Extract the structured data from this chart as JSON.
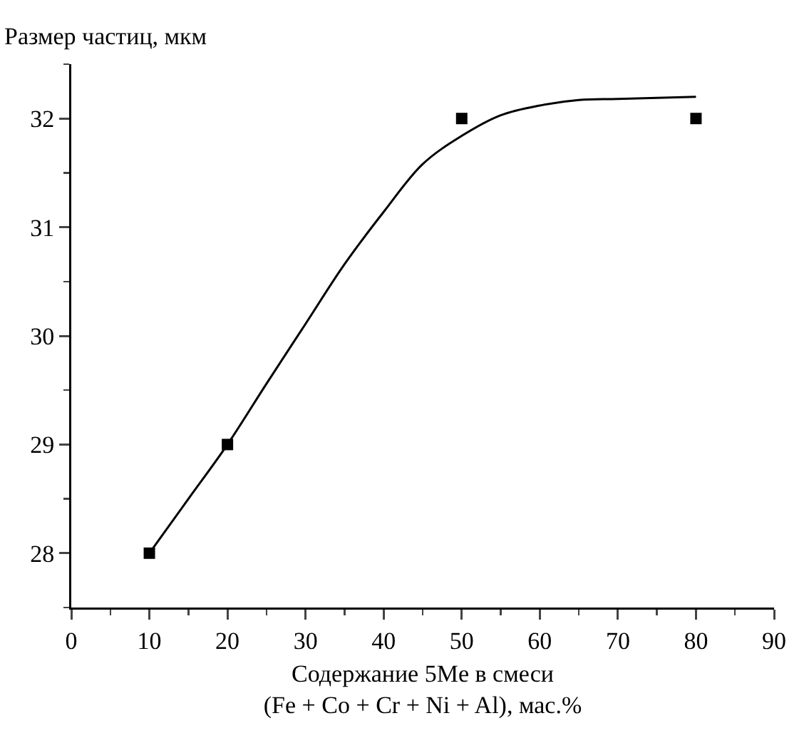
{
  "chart_data": {
    "type": "scatter",
    "ylabel": "Размер частиц, мкм",
    "xlabel": "Содержание 5Me в смеси\n(Fe + Co + Cr + Ni + Al), мас.%",
    "xlim": [
      0,
      90
    ],
    "xticks": [
      0,
      {
        "value": 5,
        "label": null
      },
      10,
      {
        "value": 15,
        "label": null
      },
      20,
      {
        "value": 25,
        "label": null
      },
      30,
      {
        "value": 35,
        "label": null
      },
      40,
      {
        "value": 45,
        "label": null
      },
      50,
      {
        "value": 55,
        "label": null
      },
      60,
      {
        "value": 65,
        "label": null
      },
      70,
      {
        "value": 75,
        "label": null
      },
      80,
      {
        "value": 85,
        "label": null
      },
      90
    ],
    "ylim": [
      27.5,
      32.5
    ],
    "yticks": [
      {
        "value": 27.5,
        "label": null
      },
      28,
      {
        "value": 28.5,
        "label": null
      },
      29,
      {
        "value": 29.5,
        "label": null
      },
      30,
      {
        "value": 30.5,
        "label": null
      },
      31,
      {
        "value": 31.5,
        "label": null
      },
      32,
      {
        "value": 32.5,
        "label": null
      }
    ],
    "grid": false,
    "series": [
      {
        "type": "line",
        "color": "#000000",
        "marker": "none",
        "line_style": "solid",
        "x": [
          10,
          15,
          20,
          25,
          30,
          35,
          40,
          45,
          50,
          55,
          60,
          65,
          70,
          80
        ],
        "values": [
          28,
          28.5,
          29,
          29.56,
          30.11,
          30.66,
          31.14,
          31.58,
          31.84,
          32.03,
          32.12,
          32.17,
          32.18,
          32.2
        ]
      },
      {
        "color": "#000000",
        "marker": "square",
        "x": [
          10,
          20,
          50,
          80
        ],
        "values": [
          28,
          29,
          32,
          32
        ]
      }
    ]
  }
}
